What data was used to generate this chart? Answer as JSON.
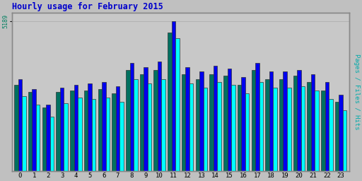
{
  "title": "Hourly usage for February 2015",
  "ylabel_right": "Pages / Files / Hits",
  "ytick_label": "5189",
  "hours": [
    0,
    1,
    2,
    3,
    4,
    5,
    6,
    7,
    8,
    9,
    10,
    11,
    12,
    13,
    14,
    15,
    16,
    17,
    18,
    19,
    20,
    21,
    22,
    23
  ],
  "hits": [
    2600,
    2300,
    1900,
    2350,
    2550,
    2500,
    2550,
    2400,
    3200,
    3050,
    3200,
    4600,
    3050,
    2900,
    3100,
    3000,
    2700,
    3100,
    2900,
    2900,
    2950,
    2800,
    2500,
    2100
  ],
  "files": [
    3200,
    2850,
    2300,
    2900,
    3000,
    3050,
    3100,
    2950,
    3750,
    3600,
    3800,
    5189,
    3600,
    3450,
    3650,
    3550,
    3250,
    3750,
    3450,
    3450,
    3500,
    3350,
    3100,
    2650
  ],
  "pages": [
    3000,
    2750,
    2200,
    2750,
    2800,
    2800,
    2850,
    2700,
    3500,
    3350,
    3500,
    4800,
    3350,
    3200,
    3350,
    3300,
    3000,
    3500,
    3200,
    3200,
    3300,
    3100,
    2800,
    2400
  ],
  "color_hits": "#00FFFF",
  "color_files": "#0000EE",
  "color_pages": "#007060",
  "background_color": "#C0C0C0",
  "plot_bg_color": "#C8C8C8",
  "border_color": "#888888",
  "title_color": "#0000CC",
  "ylabel_right_color": "#00AAAA",
  "ytick_color": "#008060",
  "bar_width": 0.28,
  "ylim": [
    0,
    5500
  ],
  "xlim": [
    -0.6,
    23.6
  ]
}
